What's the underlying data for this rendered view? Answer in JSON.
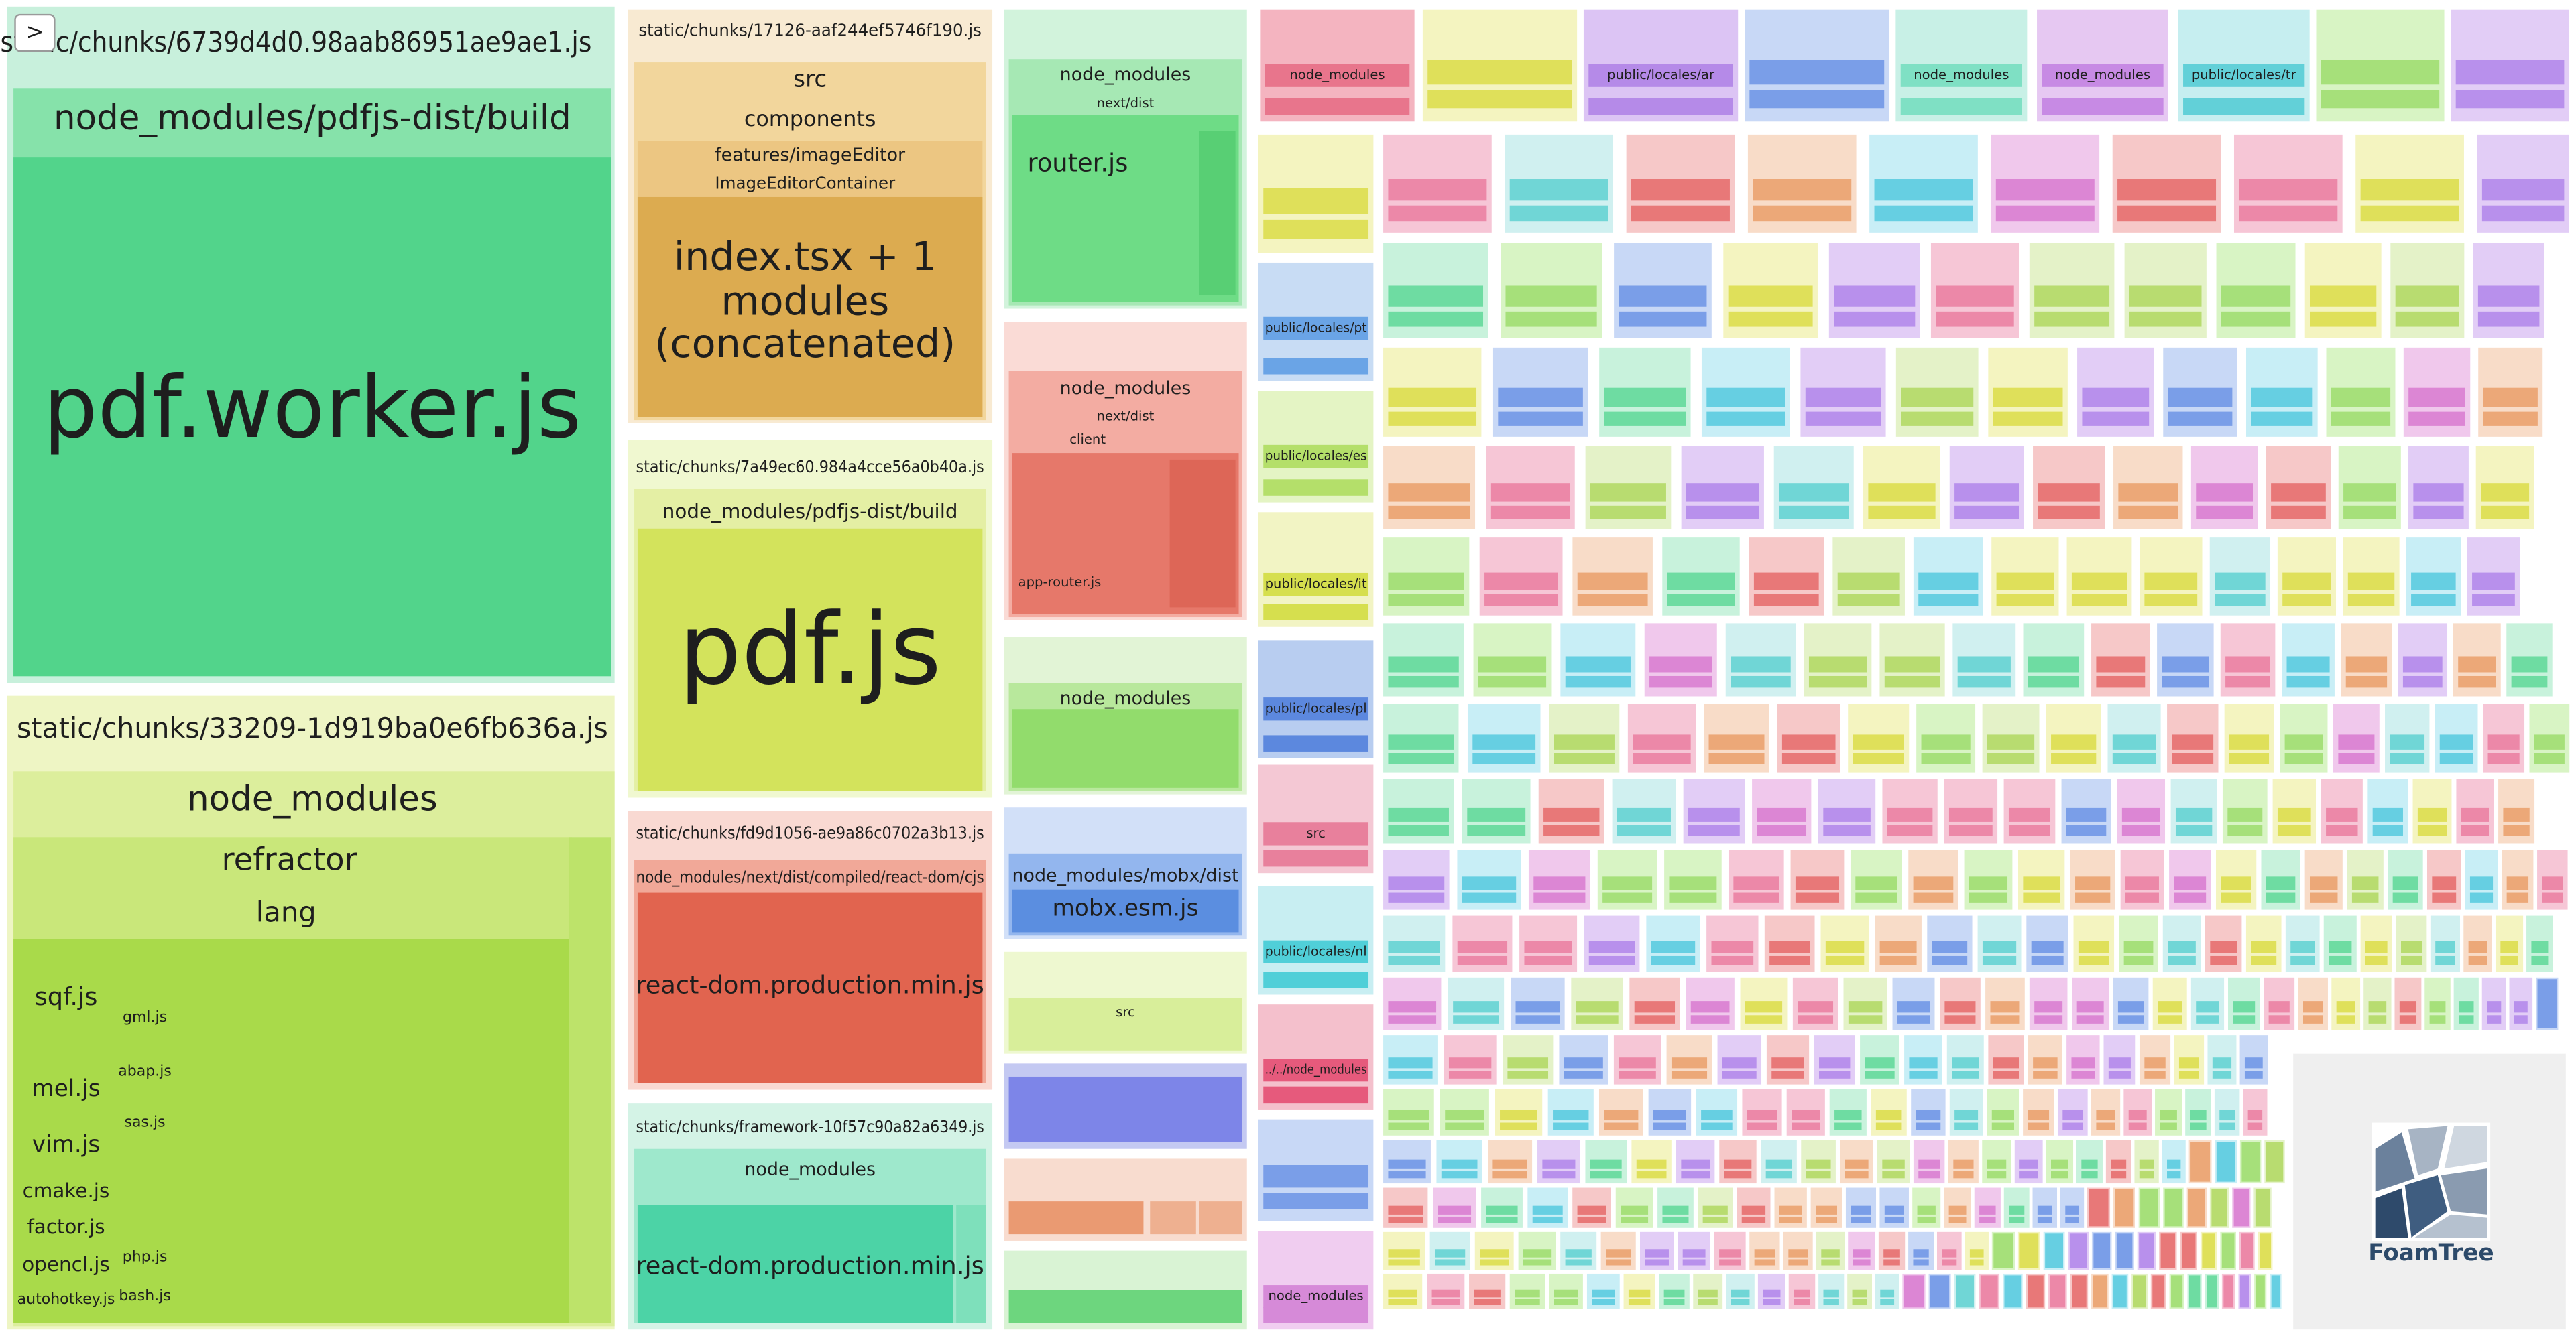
{
  "toggle": ">",
  "foamtree": "FoamTree",
  "chunks": [
    {
      "title": "static/chunks/6739d4d0.98aab86951ae9ae1.js",
      "labels": [
        "node_modules/pdfjs-dist/build",
        "pdf.worker.js"
      ]
    },
    {
      "title": "static/chunks/33209-1d919ba0e6fb636a.js",
      "labels": [
        "node_modules",
        "refractor",
        "lang",
        "sqf.js",
        "mel.js",
        "vim.js",
        "cmake.js",
        "factor.js",
        "opencl.js",
        "autohotkey.js",
        "gml.js",
        "abap.js",
        "sas.js",
        "php.js",
        "bash.js"
      ]
    },
    {
      "title": "static/chunks/17126-aaf244ef5746f190.js",
      "labels": [
        "src",
        "components",
        "features/imageEditor",
        "ImageEditorContainer",
        "index.tsx + 1",
        "modules",
        "(concatenated)"
      ]
    },
    {
      "title": "static/chunks/7a49ec60.984a4cce56a0b40a.js",
      "labels": [
        "node_modules/pdfjs-dist/build",
        "pdf.js"
      ]
    },
    {
      "title": "static/chunks/fd9d1056-ae9a86c0702a3b13.js",
      "labels": [
        "node_modules/next/dist/compiled/react-dom/cjs",
        "react-dom.production.min.js"
      ]
    },
    {
      "title": "static/chunks/framework-10f57c90a82a6349.js",
      "labels": [
        "node_modules",
        "react-dom.production.min.js"
      ]
    },
    {
      "labels": [
        "node_modules",
        "next/dist",
        "router.js"
      ]
    },
    {
      "labels": [
        "node_modules",
        "next/dist",
        "client",
        "app-router.js"
      ]
    },
    {
      "labels": [
        "node_modules"
      ]
    },
    {
      "labels": [
        "node_modules/mobx/dist",
        "mobx.esm.js"
      ]
    },
    {
      "labels": [
        "src"
      ]
    }
  ],
  "tiles": [
    "node_modules",
    "public/locales/ar",
    "node_modules",
    "node_modules",
    "public/locales/tr",
    "public/locales/pt",
    "public/locales/es",
    "public/locales/it",
    "public/locales/pl",
    "src",
    "public/locales/nl",
    "../../node_modules",
    "node_modules"
  ]
}
